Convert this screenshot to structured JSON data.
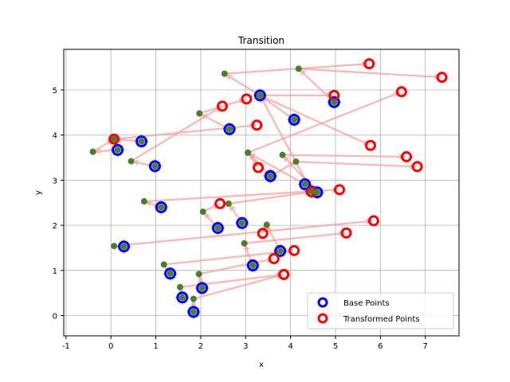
{
  "chart_data": {
    "type": "scatter",
    "title": "Transition",
    "xlabel": "x",
    "ylabel": "y",
    "xlim": [
      -1.05,
      7.75
    ],
    "ylim": [
      -0.45,
      5.9
    ],
    "xticks": [
      "-1",
      "0",
      "1",
      "2",
      "3",
      "4",
      "5",
      "6",
      "7"
    ],
    "yticks": [
      "0",
      "1",
      "2",
      "3",
      "4",
      "5"
    ],
    "grid": true,
    "legend_position": "lower right",
    "series": [
      {
        "name": "Base Points",
        "color": "#0000ff",
        "marker": "hollow-circle"
      },
      {
        "name": "Transformed Points",
        "color": "#ff0000",
        "marker": "hollow-circle"
      }
    ],
    "transition_colors": {
      "arrow": "#ff9999",
      "intermediate": "#4a7f2a",
      "base_cross": "#cc66cc"
    },
    "points": [
      {
        "base": [
          0.15,
          3.67
        ],
        "mid": [
          -0.4,
          3.63
        ],
        "transformed": [
          0.07,
          3.91
        ]
      },
      {
        "base": [
          0.68,
          3.86
        ],
        "mid": [
          0.07,
          3.91
        ],
        "transformed": [
          3.25,
          4.22
        ]
      },
      {
        "base": [
          0.98,
          3.31
        ],
        "mid": [
          0.45,
          3.42
        ],
        "transformed": [
          2.48,
          4.64
        ]
      },
      {
        "base": [
          2.64,
          4.13
        ],
        "mid": [
          1.97,
          4.48
        ],
        "transformed": [
          3.02,
          4.8
        ]
      },
      {
        "base": [
          3.32,
          4.88
        ],
        "mid": [
          2.53,
          5.36
        ],
        "transformed": [
          5.75,
          5.58
        ]
      },
      {
        "base": [
          4.08,
          4.34
        ],
        "mid": [
          3.32,
          4.88
        ],
        "transformed": [
          4.97,
          4.88
        ]
      },
      {
        "base": [
          4.97,
          4.73
        ],
        "mid": [
          4.18,
          5.47
        ],
        "transformed": [
          7.37,
          5.28
        ]
      },
      {
        "base": [
          4.32,
          2.91
        ],
        "mid": [
          3.05,
          3.61
        ],
        "transformed": [
          6.47,
          4.96
        ]
      },
      {
        "base": [
          4.59,
          2.73
        ],
        "mid": [
          3.82,
          3.56
        ],
        "transformed": [
          6.58,
          3.52
        ]
      },
      {
        "base": [
          3.55,
          3.09
        ],
        "mid": [
          4.12,
          3.41
        ],
        "transformed": [
          6.82,
          3.3
        ]
      },
      {
        "base": [
          4.47,
          2.75
        ],
        "mid": [
          3.32,
          4.88
        ],
        "transformed": [
          5.78,
          3.77
        ]
      },
      {
        "base": [
          3.55,
          3.09
        ],
        "mid": [
          3.05,
          3.61
        ],
        "transformed": [
          3.28,
          3.28
        ]
      },
      {
        "base": [
          1.12,
          2.4
        ],
        "mid": [
          0.74,
          2.53
        ],
        "transformed": [
          5.09,
          2.79
        ]
      },
      {
        "base": [
          2.38,
          1.94
        ],
        "mid": [
          2.05,
          2.3
        ],
        "transformed": [
          2.43,
          2.48
        ]
      },
      {
        "base": [
          2.92,
          2.05
        ],
        "mid": [
          2.62,
          2.48
        ],
        "transformed": [
          4.47,
          2.74
        ]
      },
      {
        "base": [
          0.29,
          1.53
        ],
        "mid": [
          0.07,
          1.54
        ],
        "transformed": [
          5.85,
          2.1
        ]
      },
      {
        "base": [
          3.77,
          1.43
        ],
        "mid": [
          3.47,
          2.01
        ],
        "transformed": [
          3.38,
          1.82
        ]
      },
      {
        "base": [
          3.16,
          1.11
        ],
        "mid": [
          2.97,
          1.6
        ],
        "transformed": [
          5.24,
          1.83
        ]
      },
      {
        "base": [
          1.32,
          0.93
        ],
        "mid": [
          1.18,
          1.13
        ],
        "transformed": [
          4.08,
          1.44
        ]
      },
      {
        "base": [
          2.03,
          0.61
        ],
        "mid": [
          1.96,
          0.92
        ],
        "transformed": [
          3.63,
          1.26
        ]
      },
      {
        "base": [
          1.59,
          0.4
        ],
        "mid": [
          1.54,
          0.63
        ],
        "transformed": [
          3.85,
          0.91
        ]
      },
      {
        "base": [
          1.84,
          0.08
        ],
        "mid": [
          1.84,
          0.37
        ],
        "transformed": [
          3.85,
          0.91
        ]
      }
    ]
  }
}
